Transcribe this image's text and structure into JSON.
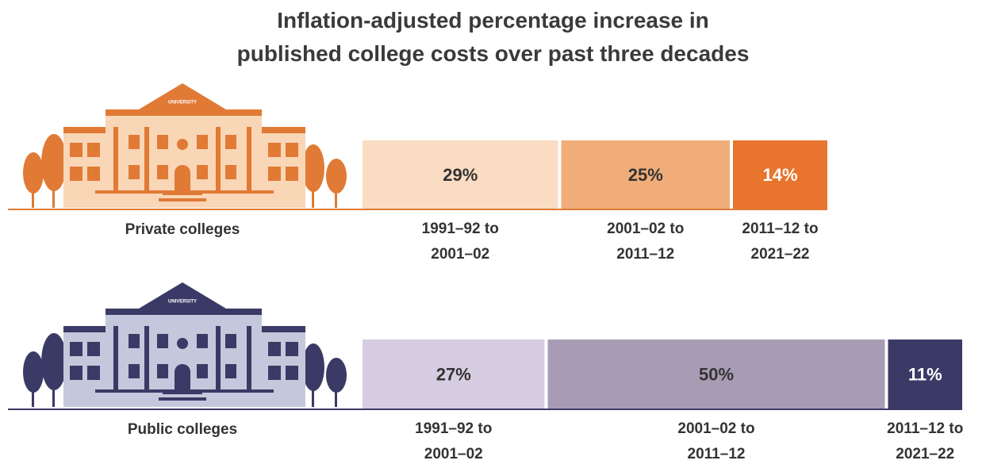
{
  "chart_data": {
    "type": "stacked-bar",
    "title": "Inflation-adjusted percentage increase in",
    "subtitle": "published college costs over past three decades",
    "building_label": "UNIVERSITY",
    "categories": [
      "1991–92 to 2001–02",
      "2001–02 to 2011–12",
      "2011–12 to 2021–22"
    ],
    "series": [
      {
        "name": "Private colleges",
        "colors": [
          "#fadcc2",
          "#f0ad7a",
          "#e8742e"
        ],
        "values": [
          29,
          25,
          14
        ],
        "value_labels": [
          "29%",
          "25%",
          "14%"
        ]
      },
      {
        "name": "Public colleges",
        "colors": [
          "#d6cde2",
          "#a89cb4",
          "#3b3a66"
        ],
        "values": [
          27,
          50,
          11
        ],
        "value_labels": [
          "27%",
          "50%",
          "11%"
        ]
      }
    ]
  }
}
